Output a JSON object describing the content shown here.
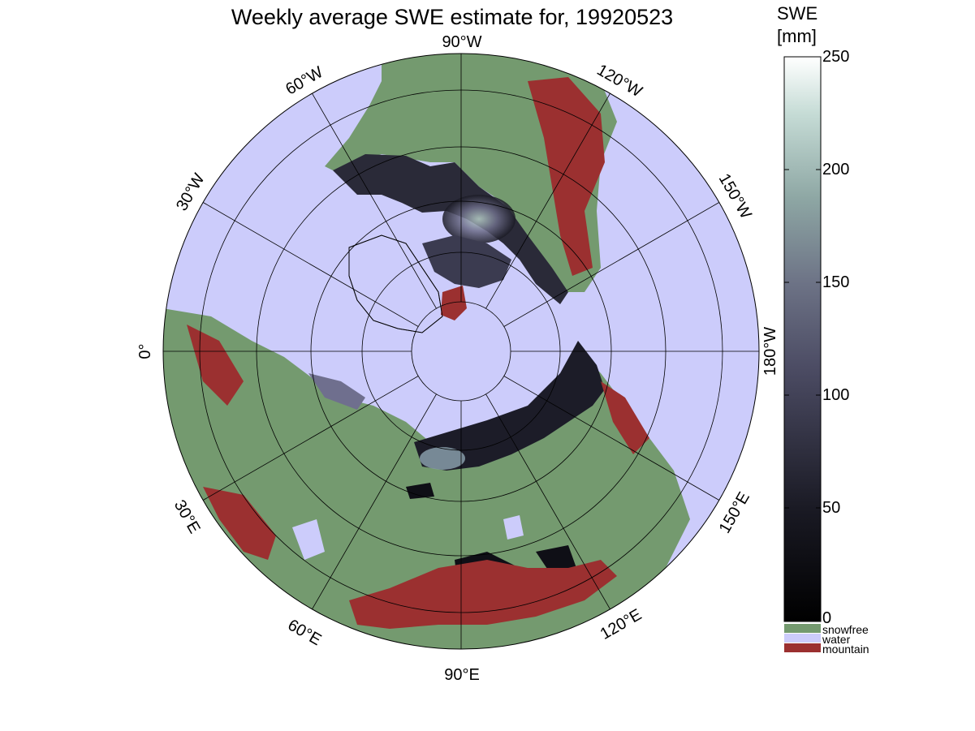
{
  "title": "Weekly average SWE estimate for, 19920523",
  "colorbar": {
    "label_line1": "SWE",
    "label_line2": "[mm]",
    "ticks": [
      "250",
      "200",
      "150",
      "100",
      "50",
      "0"
    ],
    "range": [
      0,
      250
    ],
    "categories": [
      {
        "label": "snowfree",
        "color": "#749a6f"
      },
      {
        "label": "water",
        "color": "#ccccfb"
      },
      {
        "label": "mountain",
        "color": "#9b3030"
      }
    ]
  },
  "map": {
    "projection": "north polar stereographic",
    "longitude_labels": {
      "top": "90°W",
      "bottom": "90°E",
      "left": "0°",
      "right": "180°W",
      "n60W": "60°W",
      "n30W": "30°W",
      "n120W": "120°W",
      "n150W": "150°W",
      "n30E": "30°E",
      "n60E": "60°E",
      "n120E": "120°E",
      "n150E": "150°E"
    },
    "colors": {
      "ocean": "#ccccfb",
      "land_snowfree": "#749a6f",
      "mountain": "#9b3030",
      "snow_low": "#0e0e14",
      "snow_mid": "#5a5a78",
      "snow_high": "#c8e0da"
    }
  }
}
